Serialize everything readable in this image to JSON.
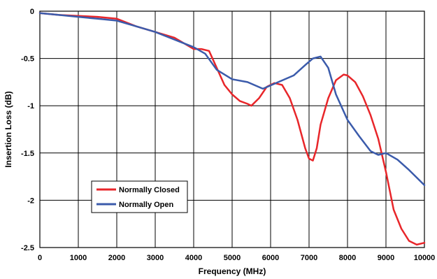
{
  "chart_data": {
    "type": "line",
    "title": "",
    "xlabel": "Frequency (MHz)",
    "ylabel": "Insertion Loss (dB)",
    "xlim": [
      0,
      10000
    ],
    "ylim": [
      -2.5,
      0
    ],
    "xticks": [
      0,
      1000,
      2000,
      3000,
      4000,
      5000,
      6000,
      7000,
      8000,
      9000,
      10000
    ],
    "yticks": [
      0,
      -0.5,
      -1,
      -1.5,
      -2,
      -2.5
    ],
    "xtick_labels": [
      "0",
      "1000",
      "2000",
      "3000",
      "4000",
      "5000",
      "6000",
      "7000",
      "8000",
      "9000",
      "10000"
    ],
    "ytick_labels": [
      "0",
      "-0.5",
      "-1",
      "-1.5",
      "-2",
      "-2.5"
    ],
    "grid": true,
    "legend_position": "lower-left",
    "series": [
      {
        "name": "Normally Closed",
        "color": "#e8262a",
        "x": [
          0,
          500,
          1000,
          1500,
          2000,
          2500,
          3000,
          3500,
          4000,
          4200,
          4400,
          4600,
          4800,
          5000,
          5200,
          5400,
          5500,
          5700,
          5900,
          6100,
          6300,
          6500,
          6700,
          6900,
          7000,
          7100,
          7200,
          7300,
          7500,
          7700,
          7900,
          8000,
          8200,
          8400,
          8600,
          8800,
          9000,
          9200,
          9400,
          9600,
          9800,
          10000
        ],
        "y": [
          -0.02,
          -0.04,
          -0.05,
          -0.06,
          -0.08,
          -0.16,
          -0.22,
          -0.28,
          -0.4,
          -0.4,
          -0.42,
          -0.6,
          -0.78,
          -0.88,
          -0.95,
          -0.98,
          -1.0,
          -0.92,
          -0.8,
          -0.76,
          -0.78,
          -0.92,
          -1.15,
          -1.45,
          -1.56,
          -1.58,
          -1.45,
          -1.2,
          -0.92,
          -0.73,
          -0.67,
          -0.68,
          -0.75,
          -0.9,
          -1.1,
          -1.35,
          -1.7,
          -2.1,
          -2.3,
          -2.43,
          -2.47,
          -2.45
        ]
      },
      {
        "name": "Normally Open",
        "color": "#3b5bab",
        "x": [
          0,
          500,
          1000,
          1500,
          2000,
          2500,
          3000,
          3500,
          4000,
          4300,
          4600,
          5000,
          5400,
          5800,
          6200,
          6600,
          6900,
          7100,
          7300,
          7500,
          7700,
          8000,
          8300,
          8600,
          8800,
          9000,
          9300,
          9600,
          10000
        ],
        "y": [
          -0.02,
          -0.04,
          -0.06,
          -0.08,
          -0.1,
          -0.16,
          -0.22,
          -0.3,
          -0.38,
          -0.45,
          -0.62,
          -0.72,
          -0.75,
          -0.82,
          -0.75,
          -0.68,
          -0.57,
          -0.5,
          -0.48,
          -0.6,
          -0.88,
          -1.15,
          -1.32,
          -1.48,
          -1.52,
          -1.5,
          -1.57,
          -1.68,
          -1.84
        ]
      }
    ]
  }
}
